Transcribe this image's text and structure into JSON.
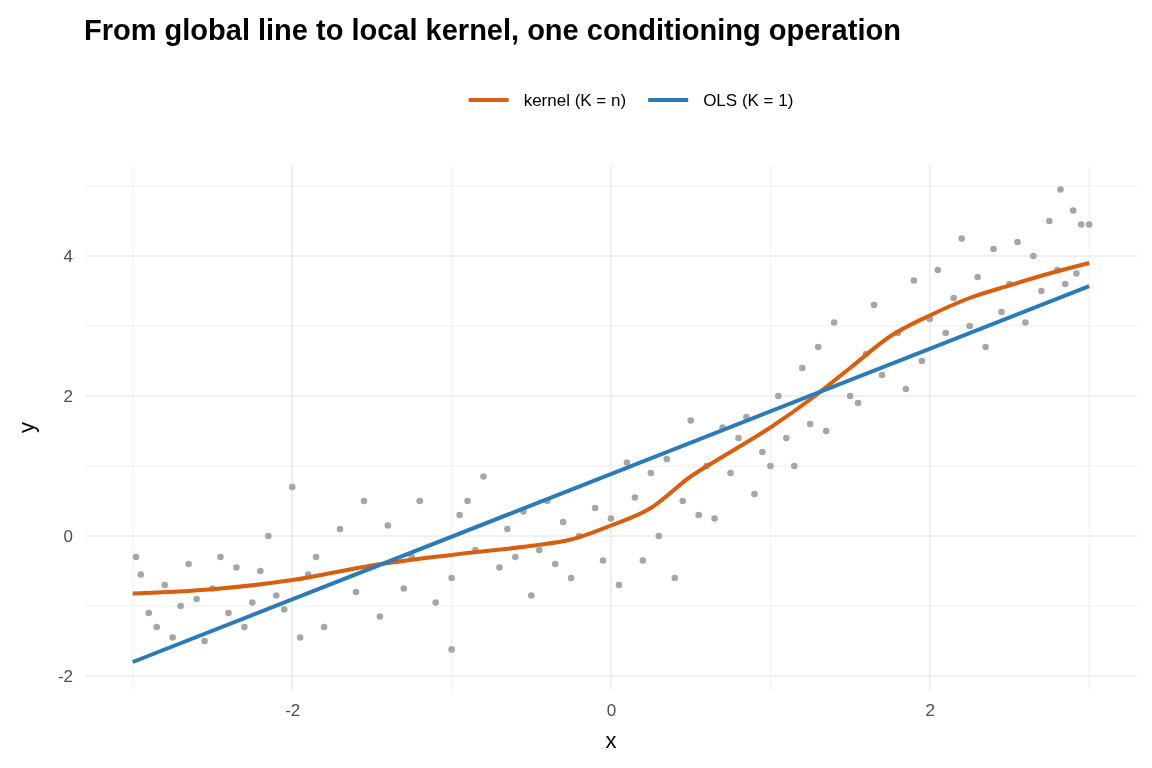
{
  "chart_data": {
    "type": "line",
    "title": "From global line to local kernel, one conditioning operation",
    "xlabel": "x",
    "ylabel": "y",
    "xlim": [
      -3.3,
      3.3
    ],
    "ylim": [
      -2.2,
      5.3
    ],
    "xticks": [
      {
        "value": -3,
        "label": null
      },
      -2,
      {
        "value": -1,
        "label": null
      },
      0,
      {
        "value": 1,
        "label": null
      },
      2,
      {
        "value": 3,
        "label": null
      }
    ],
    "yticks": [
      -2,
      {
        "value": -1,
        "label": null
      },
      0,
      {
        "value": 1,
        "label": null
      },
      2,
      {
        "value": 3,
        "label": null
      },
      4,
      {
        "value": 5,
        "label": null
      }
    ],
    "grid": true,
    "legend": "top",
    "line_style": "solid",
    "series": [
      {
        "type": "scatter",
        "marker": "circle",
        "color": "#a6a6a6",
        "x": [
          -2.98,
          -2.95,
          -2.9,
          -2.85,
          -2.8,
          -2.75,
          -2.7,
          -2.65,
          -2.6,
          -2.55,
          -2.5,
          -2.45,
          -2.4,
          -2.35,
          -2.3,
          -2.25,
          -2.2,
          -2.15,
          -2.1,
          -2.05,
          -2.0,
          -1.95,
          -1.9,
          -1.85,
          -1.8,
          -1.7,
          -1.6,
          -1.55,
          -1.45,
          -1.4,
          -1.3,
          -1.25,
          -1.2,
          -1.1,
          -1.0,
          -0.95,
          -1.0,
          -0.9,
          -0.85,
          -0.8,
          -0.7,
          -0.65,
          -0.6,
          -0.55,
          -0.5,
          -0.45,
          -0.4,
          -0.35,
          -0.3,
          -0.25,
          -0.2,
          -0.1,
          -0.05,
          0.0,
          0.05,
          0.1,
          0.15,
          0.2,
          0.25,
          0.3,
          0.35,
          0.4,
          0.45,
          0.5,
          0.55,
          0.6,
          0.65,
          0.7,
          0.75,
          0.8,
          0.85,
          0.9,
          0.95,
          1.0,
          1.05,
          1.1,
          1.15,
          1.2,
          1.25,
          1.3,
          1.35,
          1.4,
          1.5,
          1.55,
          1.6,
          1.65,
          1.7,
          1.8,
          1.85,
          1.9,
          1.95,
          2.0,
          2.05,
          2.1,
          2.15,
          2.2,
          2.25,
          2.3,
          2.35,
          2.4,
          2.45,
          2.5,
          2.55,
          2.6,
          2.65,
          2.7,
          2.75,
          2.8,
          2.82,
          2.85,
          2.9,
          2.95,
          2.92,
          3.0
        ],
        "values": [
          -0.3,
          -0.55,
          -1.1,
          -1.3,
          -0.7,
          -1.45,
          -1.0,
          -0.4,
          -0.9,
          -1.5,
          -0.75,
          -0.3,
          -1.1,
          -0.45,
          -1.3,
          -0.95,
          -0.5,
          0.0,
          -0.85,
          -1.05,
          0.7,
          -1.45,
          -0.55,
          -0.3,
          -1.3,
          0.1,
          -0.8,
          0.5,
          -1.15,
          0.15,
          -0.75,
          -0.3,
          0.5,
          -0.95,
          -0.6,
          0.3,
          -1.62,
          0.5,
          -0.2,
          0.85,
          -0.45,
          0.1,
          -0.3,
          0.35,
          -0.85,
          -0.2,
          0.5,
          -0.4,
          0.2,
          -0.6,
          0.0,
          0.4,
          -0.35,
          0.25,
          -0.7,
          1.05,
          0.55,
          -0.35,
          0.9,
          0.0,
          1.1,
          -0.6,
          0.5,
          1.65,
          0.3,
          1.0,
          0.25,
          1.55,
          0.9,
          1.4,
          1.7,
          0.6,
          1.2,
          1.0,
          2.0,
          1.4,
          1.0,
          2.4,
          1.6,
          2.7,
          1.5,
          3.05,
          2.0,
          1.9,
          2.6,
          3.3,
          2.3,
          2.9,
          2.1,
          3.65,
          2.5,
          3.1,
          3.8,
          2.9,
          3.4,
          4.25,
          3.0,
          3.7,
          2.7,
          4.1,
          3.2,
          3.6,
          4.2,
          3.05,
          4.0,
          3.5,
          4.5,
          3.8,
          4.95,
          3.6,
          4.65,
          4.45,
          3.75,
          4.45
        ]
      },
      {
        "name": "kernel (K = n)",
        "color": "#d95f0e",
        "x": [
          -3,
          -2.5,
          -2,
          -1.5,
          -1,
          -0.5,
          -0.25,
          0,
          0.25,
          0.5,
          0.75,
          1,
          1.25,
          1.5,
          1.75,
          2,
          2.25,
          2.5,
          2.75,
          3
        ],
        "values": [
          -0.82,
          -0.76,
          -0.63,
          -0.42,
          -0.27,
          -0.14,
          -0.05,
          0.15,
          0.4,
          0.85,
          1.2,
          1.55,
          1.95,
          2.4,
          2.85,
          3.15,
          3.4,
          3.58,
          3.75,
          3.9
        ]
      },
      {
        "name": "OLS (K = 1)",
        "color": "#2b7bba",
        "x": [
          -3,
          3
        ],
        "values": [
          -1.8,
          3.57
        ]
      }
    ]
  }
}
